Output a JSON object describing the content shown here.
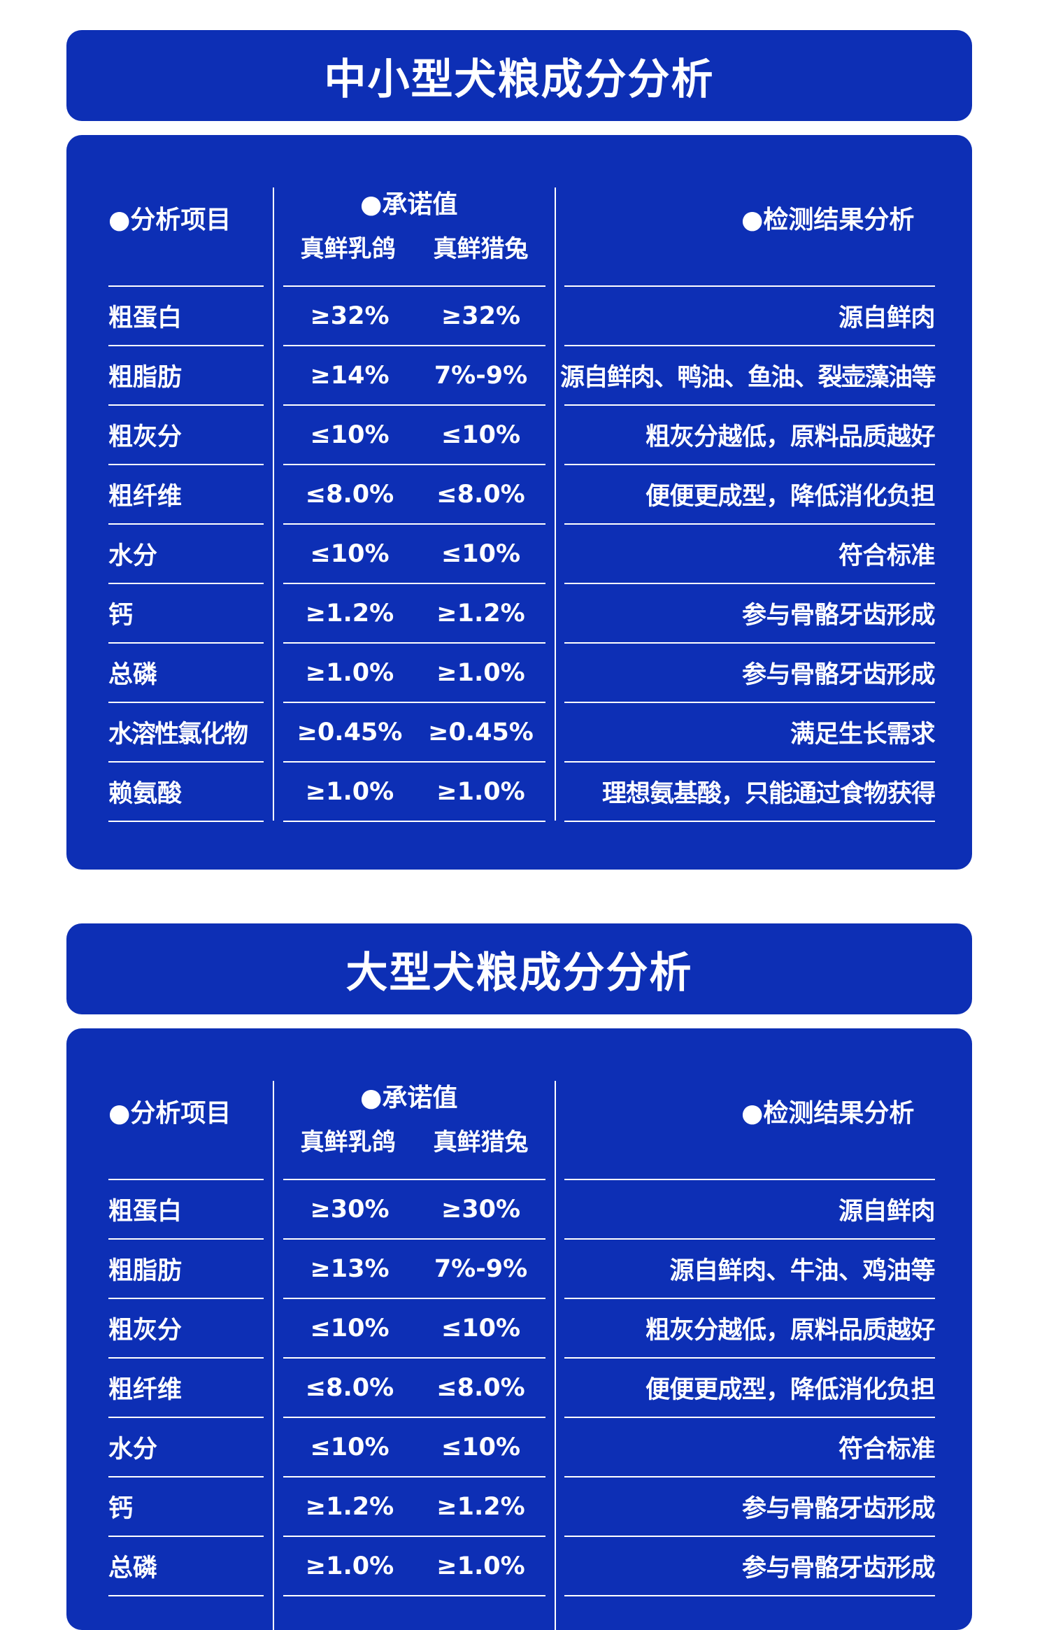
{
  "sections": [
    {
      "title": "中小型犬粮成分分析",
      "headers": {
        "item": "●分析项目",
        "promise": "●承诺值",
        "variant1": "真鲜乳鸽",
        "variant2": "真鲜猎兔",
        "result": "●检测结果分析"
      },
      "rows": [
        {
          "item": "粗蛋白",
          "v1": "≥32%",
          "v2": "≥32%",
          "result": "源自鲜肉"
        },
        {
          "item": "粗脂肪",
          "v1": "≥14%",
          "v2": "7%-9%",
          "result": "源自鲜肉、鸭油、鱼油、裂壶藻油等"
        },
        {
          "item": "粗灰分",
          "v1": "≤10%",
          "v2": "≤10%",
          "result": "粗灰分越低，原料品质越好"
        },
        {
          "item": "粗纤维",
          "v1": "≤8.0%",
          "v2": "≤8.0%",
          "result": "便便更成型，降低消化负担"
        },
        {
          "item": "水分",
          "v1": "≤10%",
          "v2": "≤10%",
          "result": "符合标准"
        },
        {
          "item": "钙",
          "v1": "≥1.2%",
          "v2": "≥1.2%",
          "result": "参与骨骼牙齿形成"
        },
        {
          "item": "总磷",
          "v1": "≥1.0%",
          "v2": "≥1.0%",
          "result": "参与骨骼牙齿形成"
        },
        {
          "item": "水溶性氯化物",
          "v1": "≥0.45%",
          "v2": "≥0.45%",
          "result": "满足生长需求"
        },
        {
          "item": "赖氨酸",
          "v1": "≥1.0%",
          "v2": "≥1.0%",
          "result": "理想氨基酸，只能通过食物获得"
        }
      ]
    },
    {
      "title": "大型犬粮成分分析",
      "headers": {
        "item": "●分析项目",
        "promise": "●承诺值",
        "variant1": "真鲜乳鸽",
        "variant2": "真鲜猎兔",
        "result": "●检测结果分析"
      },
      "rows": [
        {
          "item": "粗蛋白",
          "v1": "≥30%",
          "v2": "≥30%",
          "result": "源自鲜肉"
        },
        {
          "item": "粗脂肪",
          "v1": "≥13%",
          "v2": "7%-9%",
          "result": "源自鲜肉、牛油、鸡油等"
        },
        {
          "item": "粗灰分",
          "v1": "≤10%",
          "v2": "≤10%",
          "result": "粗灰分越低，原料品质越好"
        },
        {
          "item": "粗纤维",
          "v1": "≤8.0%",
          "v2": "≤8.0%",
          "result": "便便更成型，降低消化负担"
        },
        {
          "item": "水分",
          "v1": "≤10%",
          "v2": "≤10%",
          "result": "符合标准"
        },
        {
          "item": "钙",
          "v1": "≥1.2%",
          "v2": "≥1.2%",
          "result": "参与骨骼牙齿形成"
        },
        {
          "item": "总磷",
          "v1": "≥1.0%",
          "v2": "≥1.0%",
          "result": "参与骨骼牙齿形成"
        }
      ]
    }
  ]
}
